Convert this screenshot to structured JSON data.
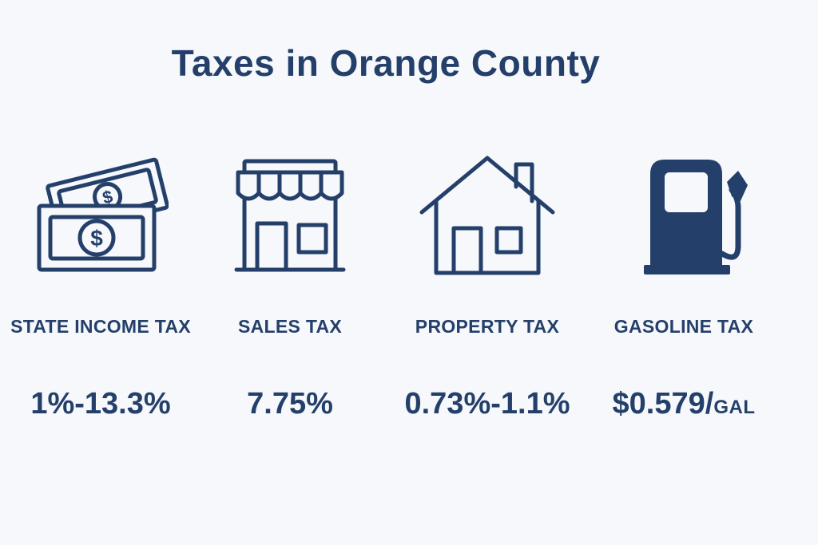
{
  "title": "Taxes in Orange County",
  "items": [
    {
      "icon": "money-bills-icon",
      "label": "STATE INCOME TAX",
      "value": "1%-13.3%",
      "unit": ""
    },
    {
      "icon": "storefront-icon",
      "label": "SALES TAX",
      "value": "7.75%",
      "unit": ""
    },
    {
      "icon": "house-icon",
      "label": "PROPERTY TAX",
      "value": "0.73%-1.1%",
      "unit": ""
    },
    {
      "icon": "gas-pump-icon",
      "label": "GASOLINE TAX",
      "value": "$0.579/",
      "unit": "GAL"
    }
  ],
  "colors": {
    "background": "#f6f8fb",
    "primary": "#24406a"
  }
}
